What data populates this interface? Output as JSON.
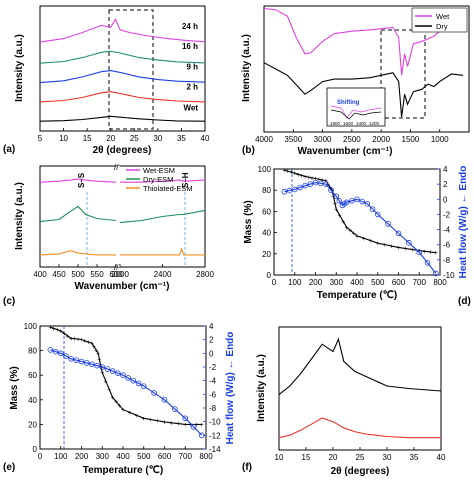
{
  "chart_data": [
    {
      "panel": "(a)",
      "type": "line",
      "xlabel": "2θ (degrees)",
      "ylabel": "Intensity (a.u.)",
      "xlim": [
        5,
        40
      ],
      "xticks": [
        "5",
        "10",
        "15",
        "20",
        "25",
        "30",
        "35",
        "40"
      ],
      "series": [
        {
          "name": "Wet",
          "color": "#000000",
          "x": [
            5,
            10,
            14,
            18,
            20,
            22,
            26,
            30,
            34,
            40
          ],
          "y": [
            0.1,
            0.13,
            0.2,
            0.32,
            0.38,
            0.33,
            0.24,
            0.17,
            0.12,
            0.1
          ]
        },
        {
          "name": "2 h",
          "color": "#e8322a",
          "x": [
            5,
            10,
            14,
            18,
            20,
            22,
            26,
            30,
            34,
            40
          ],
          "y": [
            1.2,
            1.28,
            1.45,
            1.72,
            1.78,
            1.68,
            1.45,
            1.33,
            1.25,
            1.2
          ]
        },
        {
          "name": "9 h",
          "color": "#1c3ee0",
          "x": [
            5,
            10,
            14,
            18,
            20,
            22,
            26,
            30,
            34,
            40
          ],
          "y": [
            2.3,
            2.4,
            2.62,
            2.92,
            2.98,
            2.88,
            2.62,
            2.47,
            2.38,
            2.32
          ]
        },
        {
          "name": "16 h",
          "color": "#1f8f7a",
          "x": [
            5,
            10,
            14,
            18,
            20,
            22,
            26,
            30,
            34,
            40
          ],
          "y": [
            3.4,
            3.5,
            3.72,
            4.02,
            4.08,
            3.98,
            3.72,
            3.58,
            3.48,
            3.42
          ]
        },
        {
          "name": "24 h",
          "color": "#e040e0",
          "x": [
            5,
            10,
            14,
            18,
            20,
            21,
            22,
            24,
            28,
            32,
            36,
            40
          ],
          "y": [
            4.6,
            4.8,
            5.15,
            5.55,
            5.45,
            5.9,
            5.3,
            5.15,
            4.95,
            4.8,
            4.7,
            4.62
          ]
        }
      ],
      "annotations": [
        "Wet",
        "2 h",
        "9 h",
        "16 h",
        "24 h"
      ]
    },
    {
      "panel": "(b)",
      "type": "line",
      "xlabel": "Wavenumber (cm⁻¹)",
      "ylabel": "Intensity (a.u.)",
      "xlim": [
        4000,
        500
      ],
      "xticks": [
        "4000",
        "3500",
        "3000",
        "2500",
        "2000",
        "1500",
        "1000"
      ],
      "series": [
        {
          "name": "Wet",
          "color": "#e040e0",
          "x": [
            4000,
            3800,
            3600,
            3450,
            3300,
            3200,
            3000,
            2800,
            2500,
            2200,
            2000,
            1800,
            1700,
            1650,
            1600,
            1550,
            1450,
            1300,
            1200,
            1100,
            1000,
            800,
            600
          ],
          "y": [
            0.98,
            0.97,
            0.92,
            0.75,
            0.62,
            0.63,
            0.72,
            0.78,
            0.8,
            0.81,
            0.82,
            0.83,
            0.75,
            0.45,
            0.62,
            0.52,
            0.7,
            0.72,
            0.74,
            0.76,
            0.8,
            0.85,
            0.82
          ]
        },
        {
          "name": "Dry",
          "color": "#000000",
          "x": [
            4000,
            3800,
            3600,
            3400,
            3300,
            3200,
            3000,
            2800,
            2500,
            2200,
            2000,
            1800,
            1700,
            1650,
            1600,
            1550,
            1450,
            1300,
            1200,
            1100,
            1000,
            800,
            600
          ],
          "y": [
            0.55,
            0.5,
            0.45,
            0.35,
            0.3,
            0.33,
            0.4,
            0.42,
            0.42,
            0.43,
            0.45,
            0.47,
            0.4,
            0.12,
            0.3,
            0.22,
            0.32,
            0.34,
            0.38,
            0.36,
            0.4,
            0.46,
            0.45
          ]
        }
      ],
      "inset": {
        "label": "Shifting",
        "xticks": [
          "1800",
          "1600",
          "1400",
          "1200"
        ]
      }
    },
    {
      "panel": "(c)",
      "type": "line",
      "xlabel": "Wavenumber (cm⁻¹)",
      "ylabel": "Intensity (a.u.)",
      "xticks": [
        "400",
        "450",
        "500",
        "550",
        "600",
        "2000",
        "2400",
        "2800"
      ],
      "series": [
        {
          "name": "Wet-ESM",
          "color": "#e040e0",
          "x": [
            400,
            450,
            480,
            500,
            520,
            550,
            600,
            2000,
            2200,
            2400,
            2560,
            2600,
            2800
          ],
          "y": [
            0.84,
            0.85,
            0.86,
            0.87,
            0.86,
            0.85,
            0.84,
            0.84,
            0.84,
            0.85,
            0.86,
            0.85,
            0.86
          ]
        },
        {
          "name": "Dry-ESM",
          "color": "#1f8f57",
          "x": [
            400,
            450,
            480,
            500,
            520,
            550,
            600,
            2000,
            2200,
            2400,
            2560,
            2600,
            2800
          ],
          "y": [
            0.45,
            0.47,
            0.55,
            0.6,
            0.52,
            0.48,
            0.46,
            0.44,
            0.46,
            0.5,
            0.52,
            0.52,
            0.56
          ]
        },
        {
          "name": "Thiolated-ESM",
          "color": "#f0901e",
          "x": [
            400,
            450,
            480,
            500,
            520,
            550,
            600,
            2000,
            2200,
            2400,
            2560,
            2580,
            2600,
            2800
          ],
          "y": [
            0.12,
            0.13,
            0.16,
            0.14,
            0.13,
            0.12,
            0.12,
            0.12,
            0.12,
            0.12,
            0.12,
            0.18,
            0.12,
            0.12
          ]
        }
      ],
      "annotations": [
        "S–S",
        "S–H"
      ]
    },
    {
      "panel": "(d)",
      "type": "line",
      "xlabel": "Temperature (℃)",
      "ylabel": "Mass (%)",
      "y2label": "Heat flow (W/g) ← Endo",
      "xlim": [
        0,
        800
      ],
      "ylim": [
        0,
        100
      ],
      "y2lim": [
        -10,
        4
      ],
      "xticks": [
        "0",
        "100",
        "200",
        "300",
        "400",
        "500",
        "600",
        "700",
        "800"
      ],
      "yticks": [
        "0",
        "20",
        "40",
        "60",
        "80",
        "100"
      ],
      "y2ticks": [
        "4",
        "2",
        "0",
        "-2",
        "-4",
        "-6",
        "-8",
        "-10"
      ],
      "series": [
        {
          "name": "Mass",
          "color": "#000000",
          "x": [
            50,
            100,
            150,
            200,
            250,
            280,
            300,
            350,
            400,
            500,
            600,
            700,
            780
          ],
          "y": [
            99,
            96,
            93,
            91,
            89,
            80,
            62,
            45,
            37,
            30,
            26,
            23,
            21
          ]
        },
        {
          "name": "Heat flow",
          "color": "#1c3ee0",
          "x": [
            50,
            100,
            150,
            200,
            250,
            300,
            330,
            350,
            400,
            450,
            500,
            600,
            700,
            780
          ],
          "y": [
            1,
            1.3,
            1.8,
            2.2,
            2,
            0.4,
            -0.8,
            -0.4,
            0,
            -0.6,
            -2,
            -4.5,
            -7,
            -9.8
          ]
        }
      ]
    },
    {
      "panel": "(e)",
      "type": "line",
      "xlabel": "Temperature (℃)",
      "ylabel": "Mass (%)",
      "y2label": "Heat flow (W/g) ← Endo",
      "xlim": [
        0,
        800
      ],
      "ylim": [
        0,
        100
      ],
      "y2lim": [
        -14,
        4
      ],
      "xticks": [
        "0",
        "100",
        "200",
        "300",
        "400",
        "500",
        "600",
        "700",
        "800"
      ],
      "yticks": [
        "0",
        "20",
        "40",
        "60",
        "80",
        "100"
      ],
      "y2ticks": [
        "4",
        "2",
        "0",
        "-2",
        "-4",
        "-6",
        "-8",
        "-10",
        "-12",
        "-14"
      ],
      "series": [
        {
          "name": "Mass",
          "color": "#000000",
          "x": [
            50,
            100,
            150,
            200,
            250,
            280,
            300,
            350,
            400,
            500,
            600,
            700,
            780
          ],
          "y": [
            99,
            96,
            90,
            89,
            86,
            78,
            62,
            42,
            32,
            25,
            22,
            20,
            20
          ]
        },
        {
          "name": "Heat flow",
          "color": "#1c3ee0",
          "x": [
            50,
            100,
            150,
            200,
            250,
            300,
            350,
            400,
            450,
            500,
            600,
            700,
            780
          ],
          "y": [
            0.5,
            0,
            -0.8,
            -1.2,
            -1.6,
            -2,
            -2.6,
            -3.2,
            -4,
            -4.8,
            -6.8,
            -9.5,
            -12
          ]
        }
      ]
    },
    {
      "panel": "(f)",
      "type": "line",
      "xlabel": "2θ (degrees)",
      "ylabel": "Intensity (a.u.)",
      "xlim": [
        10,
        40
      ],
      "xticks": [
        "10",
        "15",
        "20",
        "25",
        "30",
        "35",
        "40"
      ],
      "series": [
        {
          "name": "black",
          "color": "#000000",
          "x": [
            10,
            12,
            14,
            16,
            18,
            20,
            21,
            22,
            24,
            26,
            28,
            30,
            34,
            40
          ],
          "y": [
            0.45,
            0.52,
            0.62,
            0.74,
            0.86,
            0.8,
            0.9,
            0.72,
            0.64,
            0.6,
            0.56,
            0.52,
            0.5,
            0.48
          ]
        },
        {
          "name": "red",
          "color": "#e8322a",
          "x": [
            10,
            12,
            14,
            16,
            18,
            20,
            22,
            24,
            26,
            28,
            30,
            34,
            40
          ],
          "y": [
            0.1,
            0.12,
            0.16,
            0.21,
            0.26,
            0.23,
            0.18,
            0.15,
            0.13,
            0.12,
            0.11,
            0.1,
            0.1
          ]
        }
      ]
    }
  ]
}
